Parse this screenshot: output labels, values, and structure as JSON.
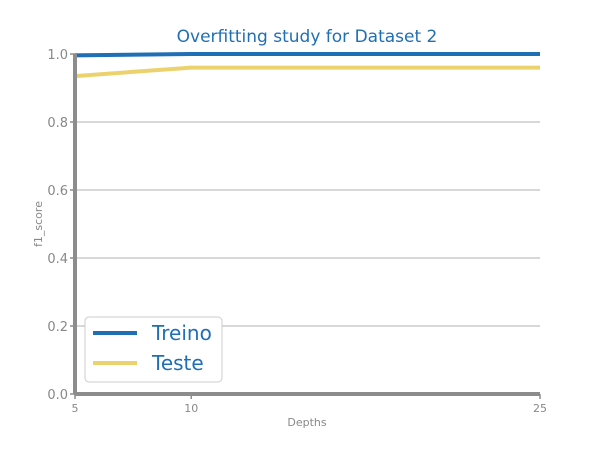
{
  "chart_data": {
    "type": "line",
    "title": "Overfitting study for Dataset 2",
    "xlabel": "Depths",
    "ylabel": "f1_score",
    "x": [
      5,
      10,
      25
    ],
    "x_ticks": [
      "5",
      "10",
      "25"
    ],
    "xlim": [
      5,
      25
    ],
    "ylim": [
      0,
      1
    ],
    "y_ticks": [
      "0.0",
      "0.2",
      "0.4",
      "0.6",
      "0.8",
      "1.0"
    ],
    "grid": "horizontal",
    "legend": "lower-left",
    "series": [
      {
        "name": "Treino",
        "values": [
          0.996,
          1.0,
          1.0
        ],
        "color": "#1f6fb4"
      },
      {
        "name": "Teste",
        "values": [
          0.935,
          0.96,
          0.96
        ],
        "color": "#ecd26d"
      }
    ],
    "colors": {
      "title": "#1f6fb4",
      "axis": "#8c8c8c",
      "grid": "#cccccc",
      "tick_text": "#888888",
      "legend_text": "#1f6fb4"
    }
  }
}
